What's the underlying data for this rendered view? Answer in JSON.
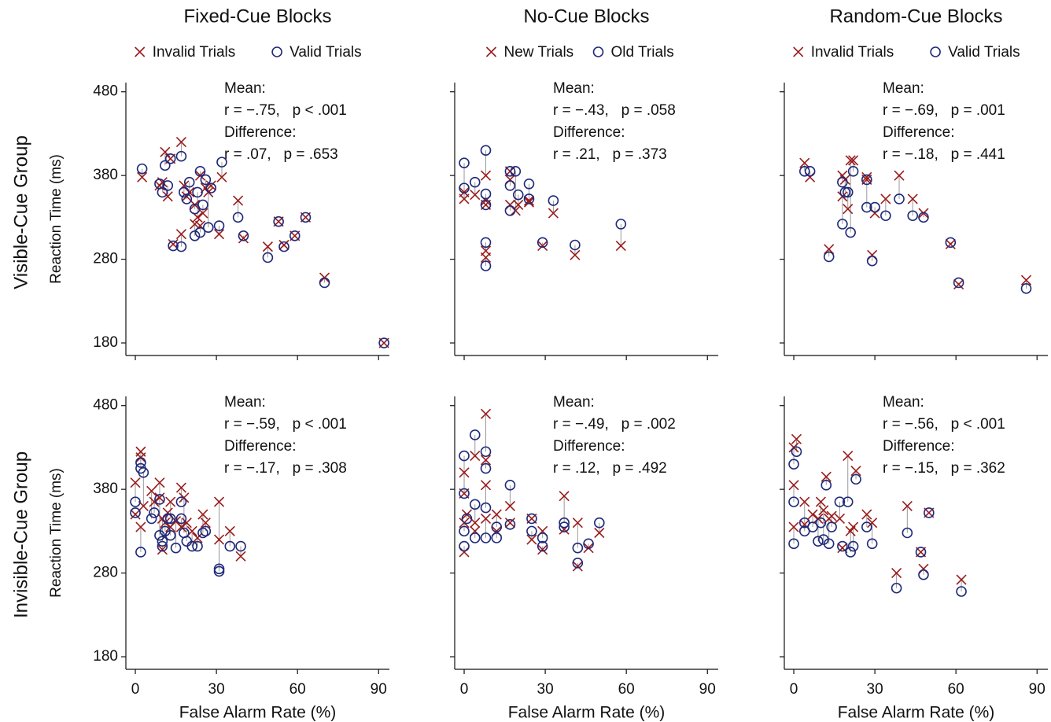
{
  "row_labels": [
    "Visible-Cue Group",
    "Invisible-Cue Group"
  ],
  "chart_data": [
    {
      "type": "scatter",
      "title": "Fixed-Cue Blocks",
      "ylabel": "Reaction Time (ms)",
      "x": [
        2.5,
        9,
        10,
        11,
        12,
        13,
        14,
        17,
        17,
        18,
        19,
        20,
        22,
        22,
        23,
        24,
        24,
        25,
        26,
        27,
        28,
        31,
        32,
        38,
        40,
        49,
        53,
        55,
        59,
        63,
        70,
        92
      ],
      "series": [
        {
          "name": "Invalid Trials",
          "color": "#9b1b1b",
          "marker": "x",
          "values": [
            378,
            368,
            372,
            408,
            355,
            400,
            298,
            420,
            310,
            368,
            355,
            360,
            322,
            345,
            330,
            380,
            320,
            335,
            365,
            360,
            368,
            310,
            378,
            350,
            305,
            295,
            325,
            297,
            308,
            330,
            258,
            180
          ]
        },
        {
          "name": "Valid Trials",
          "color": "#1f2a7a",
          "marker": "o",
          "values": [
            388,
            370,
            360,
            392,
            368,
            400,
            296,
            403,
            295,
            360,
            352,
            372,
            308,
            340,
            360,
            385,
            312,
            345,
            375,
            318,
            365,
            320,
            396,
            330,
            308,
            282,
            325,
            295,
            308,
            330,
            252,
            180
          ]
        }
      ],
      "xlim": [
        -3.5,
        94
      ],
      "xticks": [
        0,
        30,
        60,
        90
      ],
      "ylim": [
        165,
        491
      ],
      "yticks": [
        180,
        280,
        380,
        480
      ],
      "annotations": [
        "Mean:",
        "r = −.75,   p < .001",
        "Difference:",
        "r = .07,   p = .653"
      ]
    },
    {
      "type": "scatter",
      "title": "No-Cue Blocks",
      "x": [
        0,
        0,
        4,
        8,
        8,
        8,
        8,
        8,
        17,
        17,
        17,
        19,
        20,
        24,
        24,
        33,
        29,
        41,
        58
      ],
      "series": [
        {
          "name": "New Trials",
          "color": "#9b1b1b",
          "marker": "x",
          "values": [
            352,
            360,
            357,
            380,
            350,
            345,
            290,
            282,
            385,
            375,
            345,
            338,
            345,
            350,
            348,
            335,
            296,
            285,
            296
          ]
        },
        {
          "name": "Old Trials",
          "color": "#1f2a7a",
          "marker": "o",
          "values": [
            395,
            365,
            372,
            410,
            358,
            345,
            300,
            272,
            385,
            368,
            338,
            385,
            357,
            370,
            352,
            350,
            300,
            297,
            322
          ]
        }
      ],
      "xlim": [
        -3.5,
        94
      ],
      "xticks": [
        0,
        30,
        60,
        90
      ],
      "ylim": [
        165,
        491
      ],
      "yticks": [
        180,
        280,
        380,
        480
      ],
      "annotations": [
        "Mean:",
        "r = −.43,   p = .058",
        "Difference:",
        "r = .21,   p = .373"
      ]
    },
    {
      "type": "scatter",
      "title": "Random-Cue Blocks",
      "x": [
        4,
        6,
        13,
        18,
        18,
        19,
        20,
        21,
        22,
        27,
        27,
        29,
        30,
        34,
        39,
        44,
        48,
        58,
        61,
        86
      ],
      "series": [
        {
          "name": "Invalid Trials",
          "color": "#9b1b1b",
          "marker": "x",
          "values": [
            395,
            378,
            292,
            380,
            355,
            375,
            340,
            398,
            398,
            378,
            375,
            285,
            335,
            352,
            380,
            352,
            335,
            298,
            250,
            255
          ]
        },
        {
          "name": "Valid Trials",
          "color": "#1f2a7a",
          "marker": "o",
          "values": [
            385,
            385,
            283,
            372,
            322,
            360,
            360,
            312,
            385,
            375,
            342,
            278,
            342,
            332,
            352,
            332,
            330,
            300,
            252,
            245
          ]
        }
      ],
      "xlim": [
        -3.5,
        94
      ],
      "xticks": [
        0,
        30,
        60,
        90
      ],
      "ylim": [
        165,
        491
      ],
      "yticks": [
        180,
        280,
        380,
        480
      ],
      "annotations": [
        "Mean:",
        "r = −.69,   p = .001",
        "Difference:",
        "r = −.18,   p = .441"
      ]
    },
    {
      "type": "scatter",
      "ylabel": "Reaction Time (ms)",
      "xlabel": "False Alarm Rate (%)",
      "x": [
        0,
        0,
        2,
        2,
        2,
        3,
        6,
        7,
        9,
        9,
        10,
        10,
        11,
        12,
        13,
        13,
        15,
        17,
        17,
        18,
        19,
        21,
        23,
        25,
        26,
        31,
        31,
        35,
        39
      ],
      "series": [
        {
          "color": "#9b1b1b",
          "marker": "x",
          "values": [
            388,
            350,
            418,
            425,
            335,
            360,
            378,
            365,
            370,
            388,
            345,
            308,
            340,
            352,
            365,
            335,
            342,
            382,
            335,
            370,
            340,
            330,
            322,
            350,
            340,
            365,
            320,
            330,
            300
          ]
        },
        {
          "color": "#1f2a7a",
          "marker": "o",
          "values": [
            365,
            352,
            412,
            405,
            305,
            400,
            345,
            352,
            368,
            325,
            318,
            312,
            330,
            345,
            345,
            325,
            310,
            365,
            345,
            328,
            318,
            312,
            312,
            328,
            330,
            285,
            282,
            312,
            312
          ]
        }
      ],
      "xlim": [
        -3.5,
        94
      ],
      "xticks": [
        0,
        30,
        60,
        90
      ],
      "ylim": [
        165,
        491
      ],
      "yticks": [
        180,
        280,
        380,
        480
      ],
      "annotations": [
        "Mean:",
        "r = −.59,   p < .001",
        "Difference:",
        "r = −.17,   p = .308"
      ]
    },
    {
      "type": "scatter",
      "xlabel": "False Alarm Rate (%)",
      "x": [
        0,
        0,
        0,
        0,
        1,
        4,
        4,
        4,
        8,
        8,
        8,
        8,
        12,
        12,
        17,
        17,
        25,
        25,
        29,
        29,
        37,
        37,
        42,
        42,
        46,
        50
      ],
      "series": [
        {
          "color": "#9b1b1b",
          "marker": "x",
          "values": [
            305,
            340,
            400,
            375,
            350,
            420,
            340,
            330,
            470,
            415,
            385,
            345,
            350,
            330,
            360,
            340,
            345,
            320,
            330,
            308,
            372,
            332,
            340,
            288,
            310,
            328
          ]
        },
        {
          "color": "#1f2a7a",
          "marker": "o",
          "values": [
            312,
            330,
            375,
            420,
            345,
            445,
            362,
            322,
            425,
            405,
            358,
            322,
            335,
            322,
            385,
            338,
            345,
            330,
            322,
            312,
            340,
            335,
            310,
            292,
            315,
            340
          ]
        }
      ],
      "xlim": [
        -3.5,
        94
      ],
      "xticks": [
        0,
        30,
        60,
        90
      ],
      "ylim": [
        165,
        491
      ],
      "yticks": [
        180,
        280,
        380,
        480
      ],
      "annotations": [
        "Mean:",
        "r = −.49,   p = .002",
        "Difference:",
        "r = .12,   p = .492"
      ]
    },
    {
      "type": "scatter",
      "xlabel": "False Alarm Rate (%)",
      "x": [
        0,
        0,
        0,
        1,
        4,
        4,
        7,
        9,
        10,
        11,
        12,
        13,
        14,
        17,
        18,
        20,
        21,
        22,
        23,
        27,
        29,
        38,
        42,
        47,
        48,
        50,
        62
      ],
      "series": [
        {
          "color": "#9b1b1b",
          "marker": "x",
          "values": [
            430,
            385,
            335,
            440,
            365,
            338,
            350,
            345,
            365,
            355,
            395,
            345,
            348,
            345,
            310,
            420,
            330,
            335,
            402,
            350,
            340,
            280,
            360,
            305,
            285,
            352,
            272
          ]
        },
        {
          "color": "#1f2a7a",
          "marker": "o",
          "values": [
            410,
            365,
            315,
            425,
            340,
            330,
            335,
            318,
            340,
            320,
            385,
            315,
            335,
            365,
            312,
            365,
            305,
            312,
            392,
            335,
            315,
            262,
            328,
            305,
            278,
            352,
            258
          ]
        }
      ],
      "xlim": [
        -3.5,
        94
      ],
      "xticks": [
        0,
        30,
        60,
        90
      ],
      "ylim": [
        165,
        491
      ],
      "yticks": [
        180,
        280,
        380,
        480
      ],
      "annotations": [
        "Mean:",
        "r = −.56,   p < .001",
        "Difference:",
        "r = −.15,   p = .362"
      ]
    }
  ]
}
